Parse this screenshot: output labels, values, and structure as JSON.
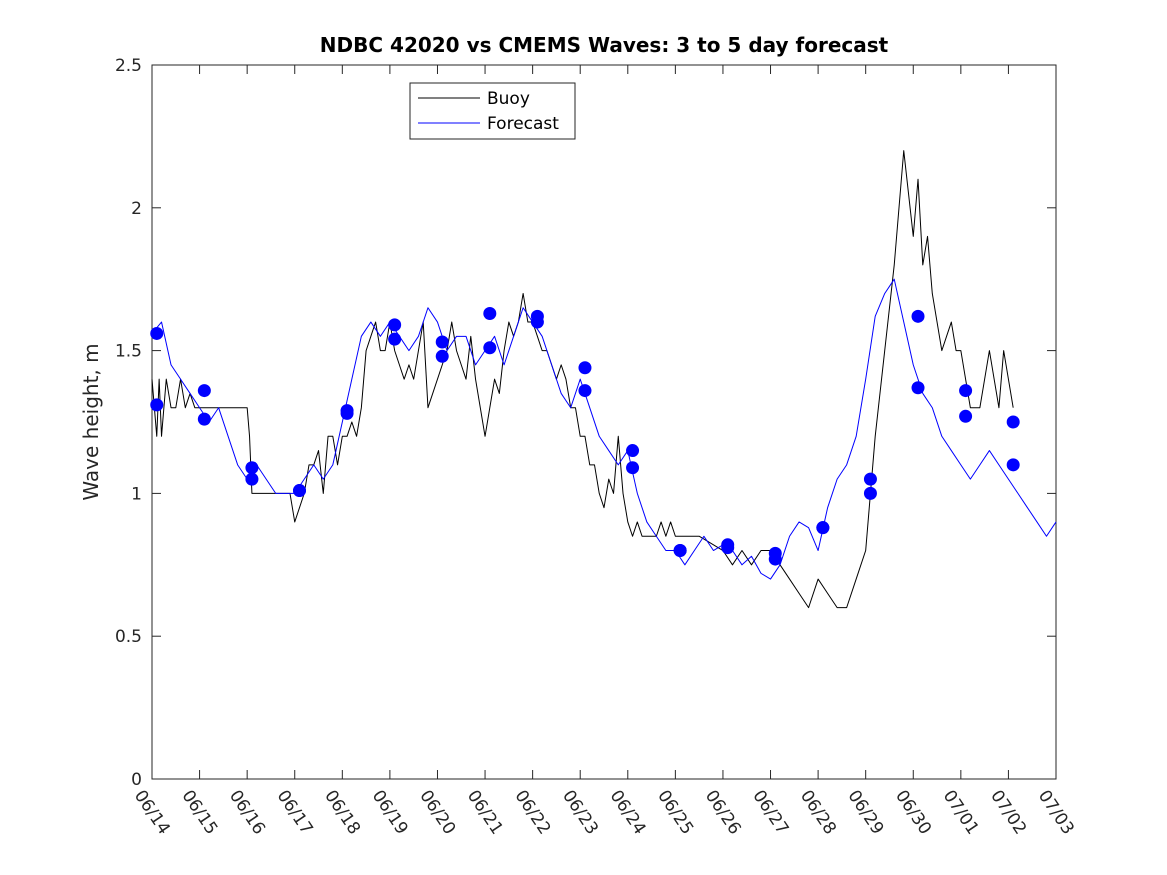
{
  "chart_data": {
    "type": "line",
    "title": "NDBC 42020 vs CMEMS Waves: 3 to 5 day forecast",
    "xlabel": "",
    "ylabel": "Wave height, m",
    "xlim": [
      "06/14",
      "07/03"
    ],
    "ylim": [
      0,
      2.5
    ],
    "x_ticks": [
      "06/14",
      "06/15",
      "06/16",
      "06/17",
      "06/18",
      "06/19",
      "06/20",
      "06/21",
      "06/22",
      "06/23",
      "06/24",
      "06/25",
      "06/26",
      "06/27",
      "06/28",
      "06/29",
      "06/30",
      "07/01",
      "07/02",
      "07/03"
    ],
    "y_ticks": [
      0,
      0.5,
      1,
      1.5,
      2,
      2.5
    ],
    "y_tick_labels": [
      "0",
      "0.5",
      "1",
      "1.5",
      "2",
      "2.5"
    ],
    "grid": false,
    "legend_position": "top-left",
    "legend": [
      "Buoy",
      "Forecast"
    ],
    "colors": {
      "buoy": "#000000",
      "forecast": "#0000ff"
    },
    "series": [
      {
        "name": "Buoy",
        "x_days": [
          0,
          0.05,
          0.1,
          0.15,
          0.2,
          0.25,
          0.3,
          0.35,
          0.4,
          0.5,
          0.6,
          0.7,
          0.8,
          0.9,
          1.0,
          1.1,
          1.2,
          1.3,
          1.4,
          1.5,
          1.6,
          1.7,
          1.8,
          1.9,
          2.0,
          2.05,
          2.1,
          2.2,
          2.3,
          2.4,
          2.5,
          2.6,
          2.7,
          2.8,
          2.9,
          3.0,
          3.1,
          3.2,
          3.3,
          3.4,
          3.5,
          3.6,
          3.7,
          3.8,
          3.9,
          4.0,
          4.1,
          4.2,
          4.3,
          4.4,
          4.5,
          4.6,
          4.7,
          4.8,
          4.9,
          5.0,
          5.1,
          5.2,
          5.3,
          5.4,
          5.5,
          5.6,
          5.7,
          5.8,
          5.9,
          6.0,
          6.1,
          6.2,
          6.3,
          6.4,
          6.5,
          6.6,
          6.7,
          6.8,
          6.9,
          7.0,
          7.1,
          7.2,
          7.3,
          7.4,
          7.5,
          7.6,
          7.7,
          7.8,
          7.9,
          8.0,
          8.1,
          8.2,
          8.3,
          8.4,
          8.5,
          8.6,
          8.7,
          8.8,
          8.9,
          9.0,
          9.1,
          9.2,
          9.3,
          9.4,
          9.5,
          9.6,
          9.7,
          9.8,
          9.9,
          10.0,
          10.1,
          10.2,
          10.3,
          10.4,
          10.5,
          10.6,
          10.7,
          10.8,
          10.9,
          11.0,
          11.5,
          12.0,
          12.2,
          12.4,
          12.6,
          12.8,
          13.0,
          13.2,
          13.4,
          13.6,
          13.8,
          14.0,
          14.2,
          14.4,
          14.6,
          14.8,
          15.0,
          15.1,
          15.2,
          15.4,
          15.6,
          15.8,
          16.0,
          16.1,
          16.2,
          16.3,
          16.4,
          16.5,
          16.6,
          16.7,
          16.8,
          16.9,
          17.0,
          17.1,
          17.2,
          17.3,
          17.4,
          17.5,
          17.6,
          17.7,
          17.8,
          17.9,
          18.0,
          18.1
        ],
        "values": [
          1.4,
          1.3,
          1.2,
          1.4,
          1.2,
          1.3,
          1.4,
          1.35,
          1.3,
          1.3,
          1.4,
          1.3,
          1.35,
          1.3,
          1.3,
          1.3,
          1.3,
          1.3,
          1.3,
          1.3,
          1.3,
          1.3,
          1.3,
          1.3,
          1.3,
          1.2,
          1.0,
          1.0,
          1.0,
          1.0,
          1.0,
          1.0,
          1.0,
          1.0,
          1.0,
          0.9,
          0.95,
          1.0,
          1.1,
          1.1,
          1.15,
          1.0,
          1.2,
          1.2,
          1.1,
          1.2,
          1.2,
          1.25,
          1.2,
          1.3,
          1.5,
          1.55,
          1.6,
          1.5,
          1.5,
          1.6,
          1.5,
          1.45,
          1.4,
          1.45,
          1.4,
          1.5,
          1.6,
          1.3,
          1.35,
          1.4,
          1.45,
          1.5,
          1.6,
          1.5,
          1.45,
          1.4,
          1.55,
          1.4,
          1.3,
          1.2,
          1.3,
          1.4,
          1.35,
          1.5,
          1.6,
          1.55,
          1.6,
          1.7,
          1.6,
          1.6,
          1.55,
          1.5,
          1.5,
          1.45,
          1.4,
          1.45,
          1.4,
          1.3,
          1.3,
          1.2,
          1.2,
          1.1,
          1.1,
          1.0,
          0.95,
          1.05,
          1.0,
          1.2,
          1.0,
          0.9,
          0.85,
          0.9,
          0.85,
          0.85,
          0.85,
          0.85,
          0.9,
          0.85,
          0.9,
          0.85,
          0.85,
          0.8,
          0.75,
          0.8,
          0.75,
          0.8,
          0.8,
          0.75,
          0.7,
          0.65,
          0.6,
          0.7,
          0.65,
          0.6,
          0.6,
          0.7,
          0.8,
          1.0,
          1.2,
          1.5,
          1.8,
          2.2,
          1.9,
          2.1,
          1.8,
          1.9,
          1.7,
          1.6,
          1.5,
          1.55,
          1.6,
          1.5,
          1.5,
          1.4,
          1.3,
          1.3,
          1.3,
          1.4,
          1.5,
          1.4,
          1.3,
          1.5,
          1.4,
          1.3
        ]
      },
      {
        "name": "Forecast",
        "x_days": [
          0,
          0.2,
          0.4,
          0.6,
          0.8,
          1.0,
          1.2,
          1.4,
          1.6,
          1.8,
          2.0,
          2.2,
          2.4,
          2.6,
          2.8,
          3.0,
          3.2,
          3.4,
          3.6,
          3.8,
          4.0,
          4.2,
          4.4,
          4.6,
          4.8,
          5.0,
          5.2,
          5.4,
          5.6,
          5.8,
          6.0,
          6.2,
          6.4,
          6.6,
          6.8,
          7.0,
          7.2,
          7.4,
          7.6,
          7.8,
          8.0,
          8.2,
          8.4,
          8.6,
          8.8,
          9.0,
          9.2,
          9.4,
          9.6,
          9.8,
          10.0,
          10.2,
          10.4,
          10.6,
          10.8,
          11.0,
          11.2,
          11.4,
          11.6,
          11.8,
          12.0,
          12.2,
          12.4,
          12.6,
          12.8,
          13.0,
          13.2,
          13.4,
          13.6,
          13.8,
          14.0,
          14.2,
          14.4,
          14.6,
          14.8,
          15.0,
          15.2,
          15.4,
          15.6,
          15.8,
          16.0,
          16.2,
          16.4,
          16.6,
          16.8,
          17.0,
          17.2,
          17.4,
          17.6,
          17.8,
          18.0,
          18.2,
          18.4,
          18.6,
          18.8,
          19.0
        ],
        "values": [
          1.56,
          1.6,
          1.45,
          1.4,
          1.35,
          1.3,
          1.25,
          1.3,
          1.2,
          1.1,
          1.05,
          1.1,
          1.05,
          1.0,
          1.0,
          1.0,
          1.05,
          1.1,
          1.05,
          1.1,
          1.25,
          1.4,
          1.55,
          1.6,
          1.55,
          1.6,
          1.55,
          1.5,
          1.55,
          1.65,
          1.6,
          1.5,
          1.55,
          1.55,
          1.45,
          1.5,
          1.55,
          1.45,
          1.55,
          1.65,
          1.6,
          1.55,
          1.45,
          1.35,
          1.3,
          1.4,
          1.3,
          1.2,
          1.15,
          1.1,
          1.15,
          1.0,
          0.9,
          0.85,
          0.8,
          0.8,
          0.75,
          0.8,
          0.85,
          0.8,
          0.82,
          0.8,
          0.75,
          0.78,
          0.72,
          0.7,
          0.75,
          0.85,
          0.9,
          0.88,
          0.8,
          0.95,
          1.05,
          1.1,
          1.2,
          1.4,
          1.62,
          1.7,
          1.75,
          1.6,
          1.45,
          1.35,
          1.3,
          1.2,
          1.15,
          1.1,
          1.05,
          1.1,
          1.15,
          1.1,
          1.05,
          1.0,
          0.95,
          0.9,
          0.85,
          0.9
        ]
      }
    ],
    "markers_forecast_init": {
      "x_days": [
        0.1,
        0.1,
        1.1,
        1.1,
        2.1,
        2.1,
        3.1,
        3.1,
        4.1,
        4.1,
        5.1,
        5.1,
        6.1,
        6.1,
        7.1,
        7.1,
        8.1,
        8.1,
        9.1,
        9.1,
        10.1,
        10.1,
        11.1,
        11.1,
        12.1,
        12.1,
        13.1,
        13.1,
        14.1,
        14.1,
        15.1,
        15.1,
        16.1,
        16.1,
        17.1,
        17.1,
        18.1,
        18.1
      ],
      "values": [
        1.56,
        1.31,
        1.36,
        1.26,
        1.09,
        1.05,
        1.01,
        1.01,
        1.29,
        1.28,
        1.59,
        1.54,
        1.53,
        1.48,
        1.63,
        1.51,
        1.62,
        1.6,
        1.44,
        1.36,
        1.15,
        1.09,
        0.8,
        0.8,
        0.82,
        0.81,
        0.79,
        0.77,
        0.88,
        0.88,
        1.05,
        1.0,
        1.62,
        1.37,
        1.36,
        1.27,
        1.25,
        1.1
      ]
    }
  }
}
